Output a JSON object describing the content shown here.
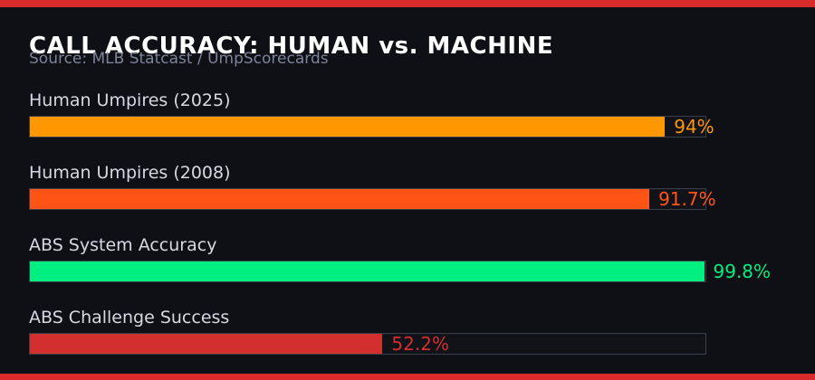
{
  "header": {
    "title": "CALL ACCURACY: HUMAN vs. MACHINE",
    "source": "Source: MLB Statcast / UmpScorecards"
  },
  "colors": {
    "background": "#0e1016",
    "accent_strip": "#d92b2b",
    "title_text": "#ffffff",
    "source_text": "#7d8398",
    "label_text": "#d7d9e0",
    "track_border": "#3a3f4c"
  },
  "chart_data": {
    "type": "bar",
    "orientation": "horizontal",
    "title": "CALL ACCURACY: HUMAN vs. MACHINE",
    "subtitle": "Source: MLB Statcast / UmpScorecards",
    "categories": [
      "Human Umpires (2025)",
      "Human Umpires (2008)",
      "ABS System Accuracy",
      "ABS Challenge Success"
    ],
    "values": [
      94,
      91.7,
      99.8,
      52.2
    ],
    "value_labels": [
      "94%",
      "91.7%",
      "99.8%",
      "52.2%"
    ],
    "bar_colors": [
      "#ff9800",
      "#ff5416",
      "#00ef80",
      "#d32f2f"
    ],
    "xlim": [
      0,
      100
    ],
    "grid": false,
    "legend": false
  },
  "bars": [
    {
      "label": "Human Umpires (2025)",
      "value": 94,
      "display": "94%",
      "color": "#ff9800"
    },
    {
      "label": "Human Umpires (2008)",
      "value": 91.7,
      "display": "91.7%",
      "color": "#ff5416"
    },
    {
      "label": "ABS System Accuracy",
      "value": 99.8,
      "display": "99.8%",
      "color": "#00ef80"
    },
    {
      "label": "ABS Challenge Success",
      "value": 52.2,
      "display": "52.2%",
      "color": "#d32f2f"
    }
  ]
}
